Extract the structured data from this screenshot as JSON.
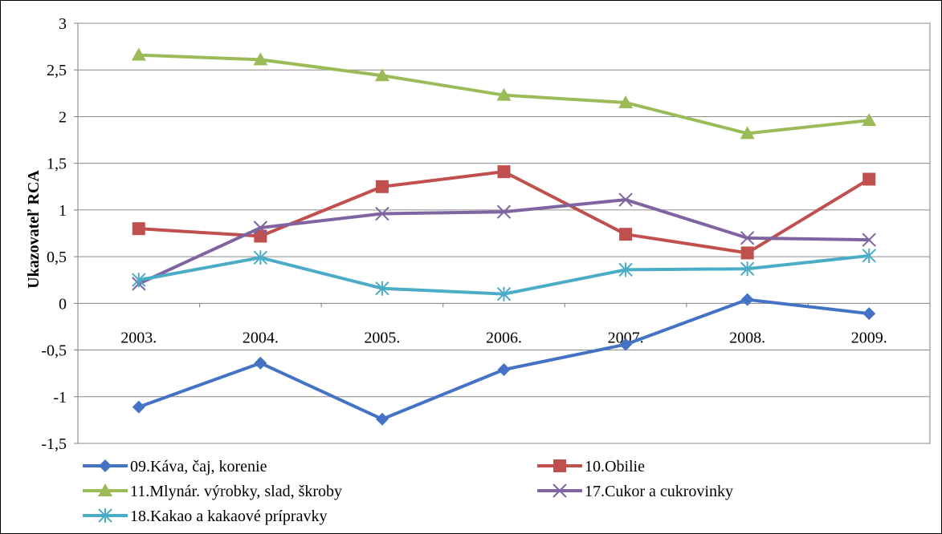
{
  "chart_data": {
    "type": "line",
    "ylabel": "Ukazovateľ RCA",
    "xlabel": "",
    "categories": [
      "2003.",
      "2004.",
      "2005.",
      "2006.",
      "2007.",
      "2008.",
      "2009."
    ],
    "ylim": [
      -1.5,
      3
    ],
    "yticks": [
      -1.5,
      -1,
      -0.5,
      0,
      0.5,
      1,
      1.5,
      2,
      2.5,
      3
    ],
    "ytick_labels": [
      "-1,5",
      "-1",
      "-0,5",
      "0",
      "0,5",
      "1",
      "1,5",
      "2",
      "2,5",
      "3"
    ],
    "grid": true,
    "legend_position": "bottom",
    "series": [
      {
        "name": "09.Káva, čaj, korenie",
        "color": "#4472C4",
        "marker": "diamond",
        "values": [
          -1.11,
          -0.64,
          -1.24,
          -0.71,
          -0.44,
          0.04,
          -0.11
        ]
      },
      {
        "name": "10.Obilie",
        "color": "#C0504D",
        "marker": "square",
        "values": [
          0.8,
          0.72,
          1.25,
          1.41,
          0.74,
          0.54,
          1.33
        ]
      },
      {
        "name": "11.Mlynár. výrobky,  slad, škroby",
        "color": "#9BBB59",
        "marker": "triangle",
        "values": [
          2.66,
          2.61,
          2.44,
          2.23,
          2.15,
          1.82,
          1.96
        ]
      },
      {
        "name": "17.Cukor a cukrovinky",
        "color": "#8064A2",
        "marker": "x",
        "values": [
          0.21,
          0.81,
          0.96,
          0.98,
          1.11,
          0.7,
          0.68
        ]
      },
      {
        "name": "18.Kakao a kakaové prípravky",
        "color": "#4BACC6",
        "marker": "star",
        "values": [
          0.25,
          0.49,
          0.16,
          0.1,
          0.36,
          0.37,
          0.51
        ]
      }
    ]
  }
}
